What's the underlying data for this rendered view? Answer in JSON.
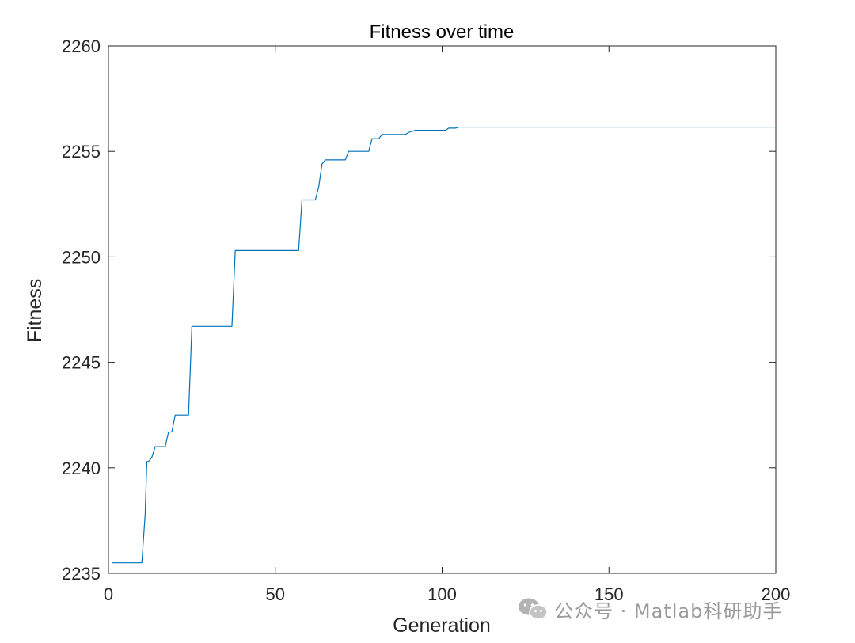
{
  "chart_data": {
    "type": "line",
    "title": "Fitness over time",
    "xlabel": "Generation",
    "ylabel": "Fitness",
    "xlim": [
      0,
      200
    ],
    "ylim": [
      2235,
      2260
    ],
    "xticks": [
      0,
      50,
      100,
      150,
      200
    ],
    "yticks": [
      2235,
      2240,
      2245,
      2250,
      2255,
      2260
    ],
    "grid": false,
    "line_color": "#0072BD",
    "series": [
      {
        "x": [
          1,
          10,
          11,
          11.5,
          12,
          13,
          14,
          15,
          17,
          18,
          19,
          20,
          21,
          24,
          25,
          37,
          38,
          57,
          58,
          62,
          63,
          64,
          65,
          71,
          72,
          78,
          79,
          81,
          82,
          89,
          90,
          92,
          93,
          101,
          102,
          104,
          105,
          200
        ],
        "y": [
          2235.5,
          2235.5,
          2237.8,
          2240.3,
          2240.3,
          2240.5,
          2241.0,
          2241.0,
          2241.0,
          2241.7,
          2241.7,
          2242.5,
          2242.5,
          2242.5,
          2246.7,
          2246.7,
          2250.3,
          2250.3,
          2252.7,
          2252.7,
          2253.3,
          2254.4,
          2254.6,
          2254.6,
          2255.0,
          2255.0,
          2255.6,
          2255.6,
          2255.8,
          2255.8,
          2255.9,
          2256.0,
          2256.0,
          2256.0,
          2256.1,
          2256.1,
          2256.15,
          2256.15
        ]
      }
    ]
  },
  "watermark": {
    "text": "公众号 · Matlab科研助手",
    "icon": "wechat-icon"
  }
}
